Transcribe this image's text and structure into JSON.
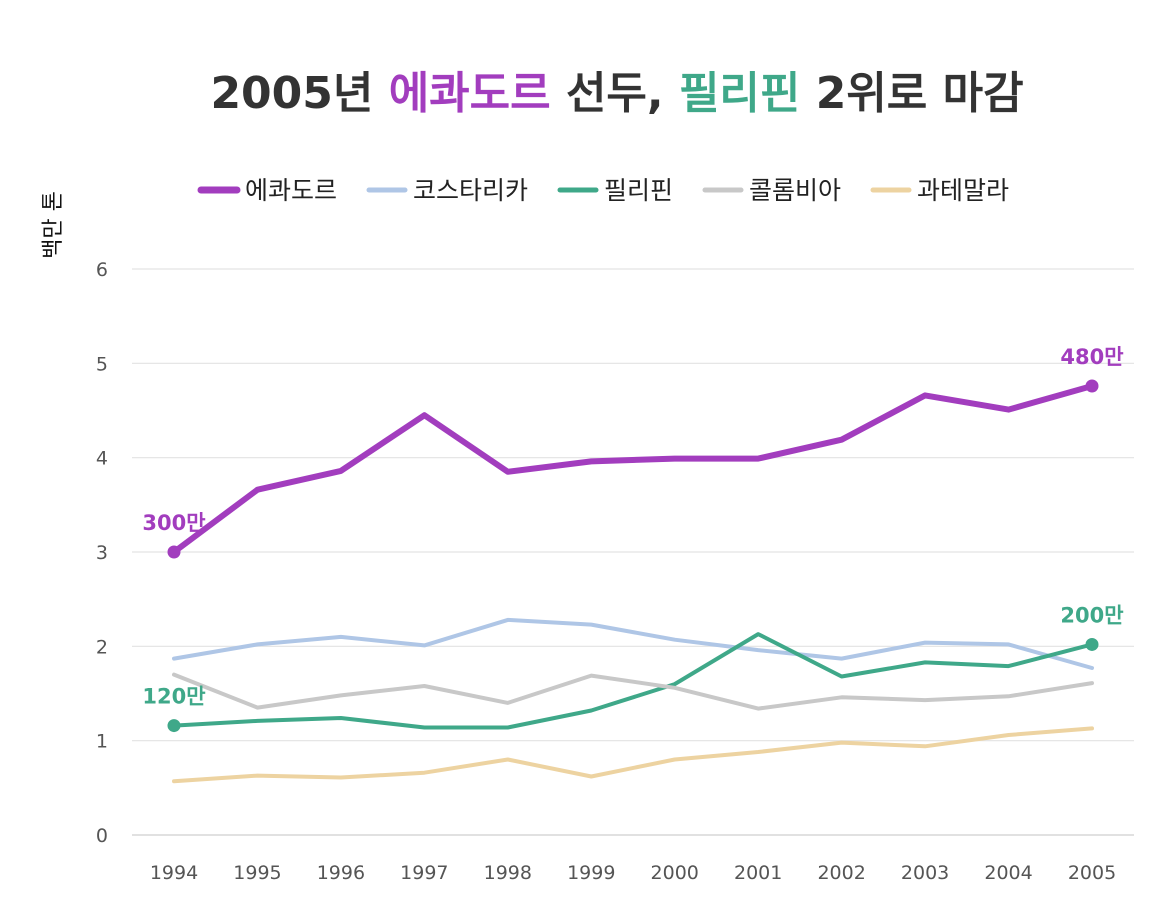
{
  "colors": {
    "ecuador": "#A23DBE",
    "costa_rica": "#AFC6E6",
    "philippines": "#3FA889",
    "colombia": "#C8C8C8",
    "guatemala": "#EDD3A1",
    "title_text": "#333333",
    "grid": "#E3E3E3"
  },
  "chart_data": {
    "type": "line",
    "title": "2005년 에콰도르 선두, 필리핀 2위로 마감",
    "title_parts": [
      {
        "text": "2005년 ",
        "color_key": "title_text"
      },
      {
        "text": "에콰도르",
        "color_key": "ecuador"
      },
      {
        "text": " 선두, ",
        "color_key": "title_text"
      },
      {
        "text": "필리핀",
        "color_key": "philippines"
      },
      {
        "text": " 2위로 마감",
        "color_key": "title_text"
      }
    ],
    "ylabel": "백만 톤",
    "xlabel": "",
    "ylim": [
      0,
      6
    ],
    "y_ticks": [
      0,
      1,
      2,
      3,
      4,
      5,
      6
    ],
    "grid": true,
    "legend_position": "top",
    "x": [
      "1994",
      "1995",
      "1996",
      "1997",
      "1998",
      "1999",
      "2000",
      "2001",
      "2002",
      "2003",
      "2004",
      "2005"
    ],
    "series": [
      {
        "name": "에콰도르",
        "color_key": "ecuador",
        "width": 6,
        "values": [
          3.0,
          3.66,
          3.86,
          4.45,
          3.85,
          3.96,
          3.99,
          3.99,
          4.19,
          4.66,
          4.51,
          4.76
        ]
      },
      {
        "name": "코스타리카",
        "color_key": "costa_rica",
        "width": 4,
        "values": [
          1.87,
          2.02,
          2.1,
          2.01,
          2.28,
          2.23,
          2.07,
          1.96,
          1.87,
          2.04,
          2.02,
          1.77
        ]
      },
      {
        "name": "필리핀",
        "color_key": "philippines",
        "width": 4,
        "values": [
          1.16,
          1.21,
          1.24,
          1.14,
          1.14,
          1.32,
          1.6,
          2.13,
          1.68,
          1.83,
          1.79,
          2.02
        ]
      },
      {
        "name": "콜롬비아",
        "color_key": "colombia",
        "width": 4,
        "values": [
          1.7,
          1.35,
          1.48,
          1.58,
          1.4,
          1.69,
          1.56,
          1.34,
          1.46,
          1.43,
          1.47,
          1.61
        ]
      },
      {
        "name": "과테말라",
        "color_key": "guatemala",
        "width": 4,
        "values": [
          0.57,
          0.63,
          0.61,
          0.66,
          0.8,
          0.62,
          0.8,
          0.88,
          0.98,
          0.94,
          1.06,
          1.13
        ]
      }
    ],
    "annotations": [
      {
        "text": "300만",
        "series": 0,
        "index": 0,
        "color_key": "ecuador",
        "place": "above"
      },
      {
        "text": "480만",
        "series": 0,
        "index": 11,
        "color_key": "ecuador",
        "place": "above"
      },
      {
        "text": "120만",
        "series": 2,
        "index": 0,
        "color_key": "philippines",
        "place": "above"
      },
      {
        "text": "200만",
        "series": 2,
        "index": 11,
        "color_key": "philippines",
        "place": "above"
      }
    ],
    "highlight_points": [
      {
        "series": 0,
        "index": 0
      },
      {
        "series": 0,
        "index": 11
      },
      {
        "series": 2,
        "index": 0
      },
      {
        "series": 2,
        "index": 11
      }
    ]
  }
}
